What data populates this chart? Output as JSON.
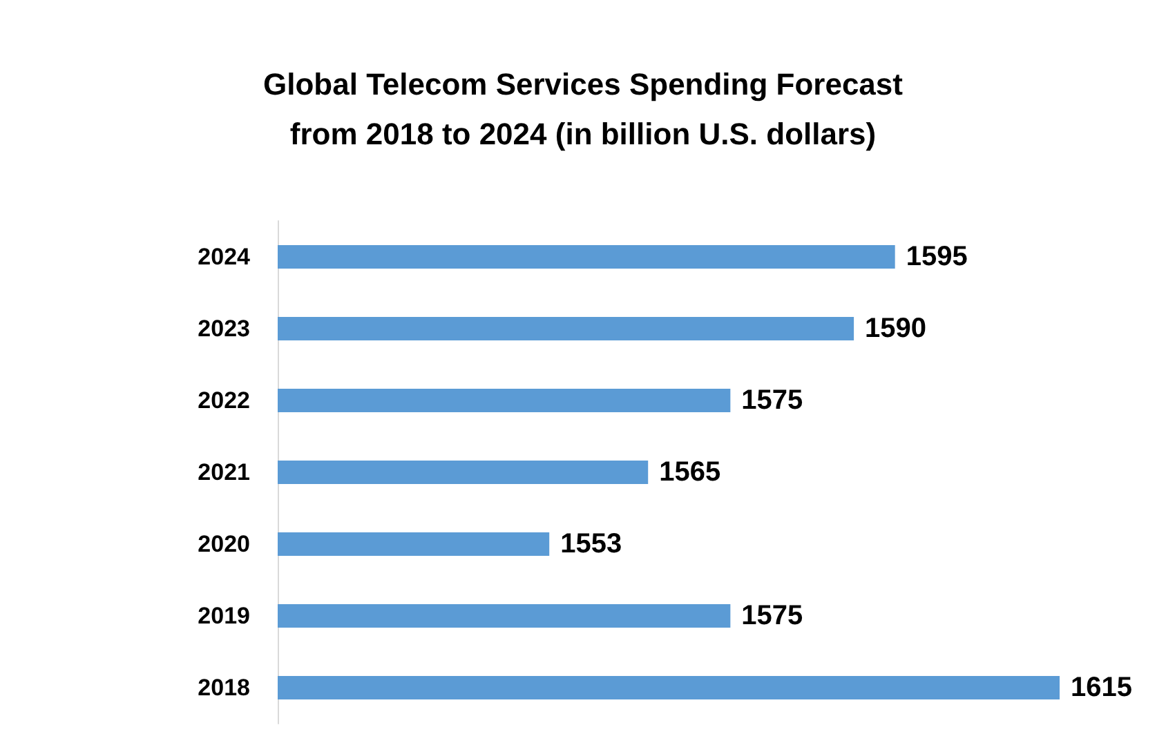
{
  "chart_data": {
    "type": "bar",
    "orientation": "horizontal",
    "title": "Global Telecom Services Spending Forecast\nfrom 2018 to 2024 (in billion U.S. dollars)",
    "categories": [
      "2024",
      "2023",
      "2022",
      "2021",
      "2020",
      "2019",
      "2018"
    ],
    "values": [
      1595,
      1590,
      1575,
      1565,
      1553,
      1575,
      1615
    ],
    "color": "#5b9bd5",
    "xlim": [
      1520,
      1615
    ],
    "data_labels": true,
    "tick_labels": "y",
    "grid": false
  }
}
